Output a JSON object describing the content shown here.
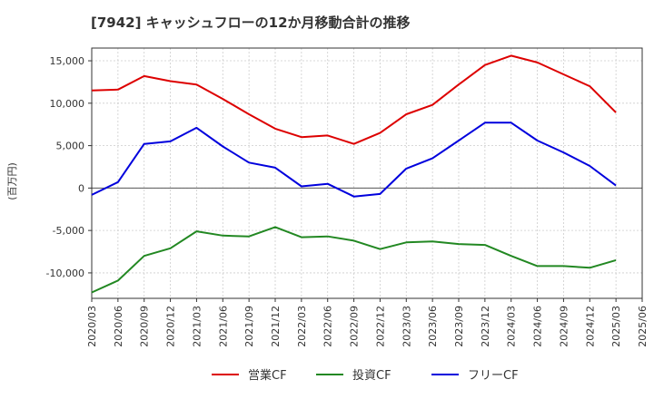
{
  "chart_data": {
    "type": "line",
    "title": "[7942]  キャッシュフローの12か月移動合計の推移",
    "ylabel": "(百万円)",
    "xlabel": "",
    "ylim": [
      -13000,
      16500
    ],
    "yticks": [
      15000,
      10000,
      5000,
      0,
      -5000,
      -10000
    ],
    "ytick_labels": [
      "15,000",
      "10,000",
      "5,000",
      "0",
      "-5,000",
      "-10,000"
    ],
    "grid": true,
    "legend_position": "bottom",
    "categories": [
      "2020/03",
      "2020/06",
      "2020/09",
      "2020/12",
      "2021/03",
      "2021/06",
      "2021/09",
      "2021/12",
      "2022/03",
      "2022/06",
      "2022/09",
      "2022/12",
      "2023/03",
      "2023/06",
      "2023/09",
      "2023/12",
      "2024/03",
      "2024/06",
      "2024/09",
      "2024/12",
      "2025/03",
      "2025/06"
    ],
    "series": [
      {
        "name": "営業CF",
        "color": "#dd0000",
        "values": [
          11500,
          11600,
          13200,
          12600,
          12200,
          10500,
          8700,
          7000,
          6000,
          6200,
          5200,
          6500,
          8700,
          9800,
          12200,
          14500,
          15600,
          14800,
          13400,
          12000,
          8900,
          null
        ]
      },
      {
        "name": "投資CF",
        "color": "#228822",
        "values": [
          -12300,
          -10900,
          -8000,
          -7100,
          -5100,
          -5600,
          -5700,
          -4600,
          -5800,
          -5700,
          -6200,
          -7200,
          -6400,
          -6300,
          -6600,
          -6700,
          -8000,
          -9200,
          -9200,
          -9400,
          -8500,
          null
        ]
      },
      {
        "name": "フリーCF",
        "color": "#0000dd",
        "values": [
          -800,
          700,
          5200,
          5500,
          7100,
          4900,
          3000,
          2400,
          200,
          500,
          -1000,
          -700,
          2300,
          3500,
          5600,
          7700,
          7700,
          5600,
          4200,
          2600,
          300,
          null
        ]
      }
    ]
  }
}
